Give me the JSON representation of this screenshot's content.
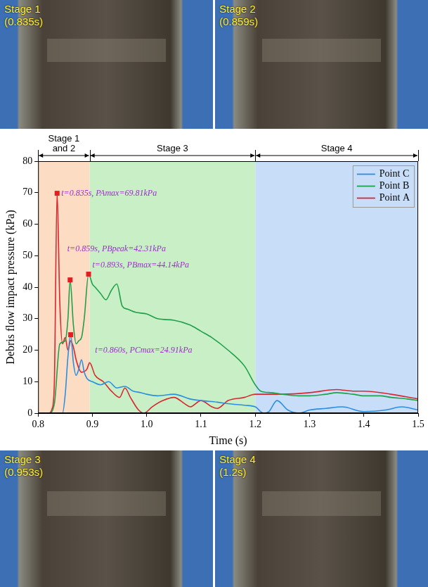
{
  "chart_data": {
    "type": "line",
    "x_label": "Time (s)",
    "y_label": "Debris flow impact pressure (kPa)",
    "xlim": [
      0.8,
      1.5
    ],
    "xticks": [
      0.8,
      0.9,
      {
        "value": 1,
        "label": "1.0"
      },
      1.1,
      1.2,
      1.3,
      1.4,
      1.5
    ],
    "ylim": [
      0,
      80
    ],
    "yticks": [
      0,
      10,
      20,
      30,
      40,
      50,
      60,
      70,
      80
    ],
    "grid": false,
    "legend": "upper right",
    "series": [
      {
        "name": "Point C",
        "color": "#2a8fe0",
        "x": [
          0.8,
          0.845,
          0.85,
          0.855,
          0.86,
          0.865,
          0.87,
          0.875,
          0.88,
          0.885,
          0.89,
          0.9,
          0.915,
          0.93,
          0.945,
          0.96,
          0.975,
          0.99,
          1.0,
          1.02,
          1.05,
          1.08,
          1.1,
          1.13,
          1.15,
          1.18,
          1.2,
          1.215,
          1.225,
          1.24,
          1.26,
          1.28,
          1.3,
          1.33,
          1.36,
          1.4,
          1.44,
          1.47,
          1.5
        ],
        "values": [
          0,
          0,
          6,
          18,
          24.91,
          16,
          12,
          14,
          17,
          13,
          11,
          10,
          9,
          10,
          8,
          8.5,
          7,
          6.5,
          6,
          5.5,
          6,
          4.5,
          4,
          3.5,
          3,
          2.5,
          2,
          0,
          0.5,
          4,
          1,
          0,
          1,
          1.5,
          2,
          0.5,
          1,
          2,
          1
        ]
      },
      {
        "name": "Point B",
        "color": "#1fa04a",
        "x": [
          0.8,
          0.82,
          0.83,
          0.84,
          0.85,
          0.855,
          0.859,
          0.865,
          0.87,
          0.875,
          0.88,
          0.885,
          0.893,
          0.9,
          0.905,
          0.915,
          0.925,
          0.935,
          0.945,
          0.955,
          0.965,
          0.98,
          1.0,
          1.02,
          1.05,
          1.08,
          1.1,
          1.12,
          1.15,
          1.18,
          1.2,
          1.21,
          1.23,
          1.25,
          1.28,
          1.3,
          1.33,
          1.35,
          1.38,
          1.4,
          1.43,
          1.45,
          1.48,
          1.5
        ],
        "values": [
          0,
          0,
          3,
          22,
          23,
          30,
          42.31,
          28,
          22,
          23,
          24,
          30,
          44.14,
          41,
          40,
          38,
          36,
          39,
          41,
          34,
          33,
          32,
          31.5,
          30,
          29.5,
          28,
          26,
          24,
          20,
          15,
          9,
          7,
          6.5,
          6,
          5.5,
          5.5,
          6,
          6.5,
          6,
          5.5,
          5.5,
          5,
          4.5,
          4
        ]
      },
      {
        "name": "Point A",
        "color": "#d8282f",
        "x": [
          0.8,
          0.82,
          0.826,
          0.83,
          0.835,
          0.84,
          0.845,
          0.85,
          0.855,
          0.86,
          0.865,
          0.87,
          0.88,
          0.89,
          0.895,
          0.905,
          0.92,
          0.935,
          0.95,
          0.96,
          0.97,
          0.985,
          0.995,
          1.01,
          1.03,
          1.05,
          1.07,
          1.08,
          1.1,
          1.12,
          1.13,
          1.15,
          1.18,
          1.2,
          1.25,
          1.3,
          1.35,
          1.38,
          1.4,
          1.45,
          1.5
        ],
        "values": [
          0,
          0,
          1.5,
          10,
          69.81,
          35,
          22,
          24,
          20,
          23,
          21,
          17,
          13,
          14,
          16,
          12,
          10,
          7,
          5,
          8,
          5,
          1,
          0,
          2,
          4,
          5,
          3,
          2,
          4,
          2,
          1.5,
          4,
          5,
          6,
          6,
          6.5,
          7.5,
          7,
          7,
          6,
          4.5
        ]
      }
    ],
    "stages": [
      {
        "label": "Stage 1 and 2",
        "start": 0.8,
        "end": 0.895,
        "color": "#fcdcc3"
      },
      {
        "label": "Stage 3",
        "start": 0.895,
        "end": 1.2,
        "color": "#c9efc6"
      },
      {
        "label": "Stage 4",
        "start": 1.2,
        "end": 1.5,
        "color": "#c8def8"
      }
    ],
    "annotations": [
      {
        "x": 0.835,
        "y": 69.81,
        "text": "t=0.835s, PAmax=69.81kPa"
      },
      {
        "x": 0.859,
        "y": 42.31,
        "text": "t=0.859s, PBpeak=42.31kPa"
      },
      {
        "x": 0.893,
        "y": 44.14,
        "text": "t=0.893s, PBmax=44.14kPa"
      },
      {
        "x": 0.86,
        "y": 24.91,
        "text": "t=0.860s, PCmax=24.91kPa"
      }
    ]
  },
  "photos": [
    {
      "stage": "Stage 1",
      "time": "(0.835s)"
    },
    {
      "stage": "Stage 2",
      "time": "(0.859s)"
    },
    {
      "stage": "Stage 3",
      "time": "(0.953s)"
    },
    {
      "stage": "Stage 4",
      "time": "(1.2s)"
    }
  ]
}
